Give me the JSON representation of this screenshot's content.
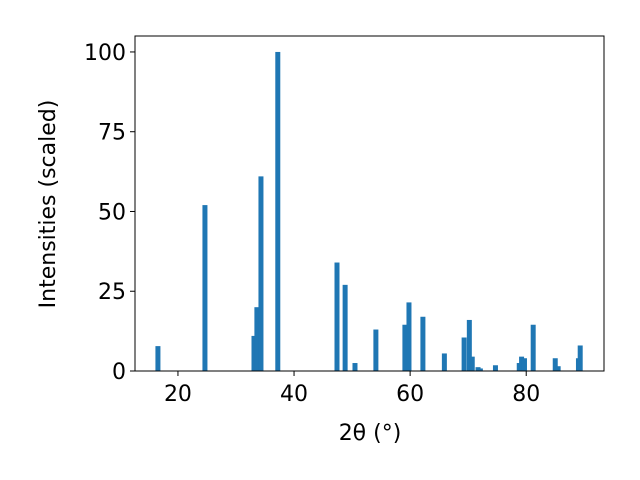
{
  "chart_data": {
    "type": "bar",
    "x_label": "2θ (°)",
    "y_label": "Intensities (scaled)",
    "x": [
      16.55,
      24.65,
      33.1,
      33.6,
      34.3,
      37.2,
      47.4,
      48.8,
      50.5,
      54.1,
      59.1,
      59.8,
      62.2,
      65.9,
      69.3,
      70.2,
      70.7,
      71.7,
      72.1,
      74.7,
      78.8,
      79.2,
      79.7,
      81.2,
      85.0,
      85.5,
      89.0,
      89.3
    ],
    "values": [
      7.8,
      52,
      11,
      20,
      61,
      100,
      34,
      27,
      2.5,
      13,
      14.5,
      21.5,
      17,
      5.5,
      10.5,
      16,
      4.5,
      1.2,
      0.8,
      1.8,
      2.5,
      4.5,
      4,
      14.5,
      4,
      1.5,
      4,
      8
    ],
    "color": "#1f77b4",
    "xlim": [
      12.6,
      93.4
    ],
    "xticks": [
      20,
      40,
      60,
      80
    ],
    "ylim": [
      0,
      105
    ],
    "yticks": [
      0,
      25,
      50,
      75,
      100
    ]
  }
}
